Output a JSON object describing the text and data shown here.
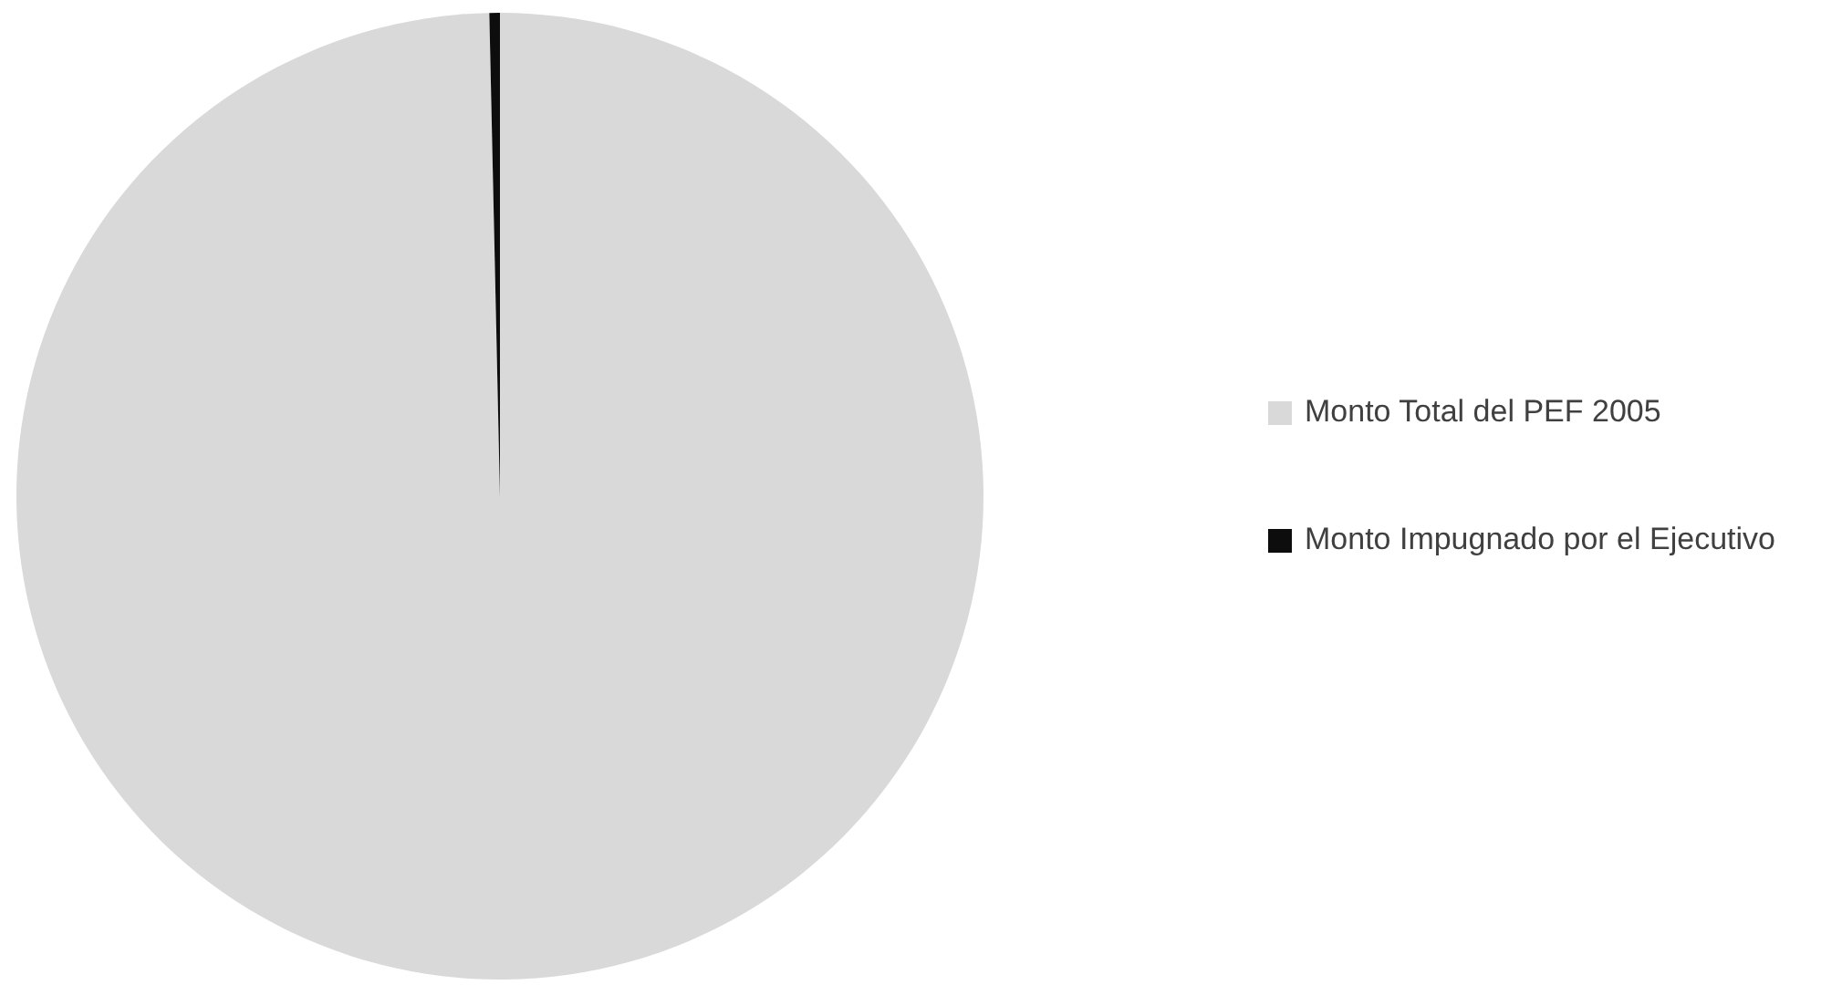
{
  "chart_data": {
    "type": "pie",
    "categories": [
      "Monto Total del PEF 2005",
      "Monto Impugnado por el Ejecutivo"
    ],
    "values": [
      99.65,
      0.35
    ],
    "colors": [
      "#d9d9d9",
      "#0d0d0d"
    ],
    "legend": "right"
  }
}
